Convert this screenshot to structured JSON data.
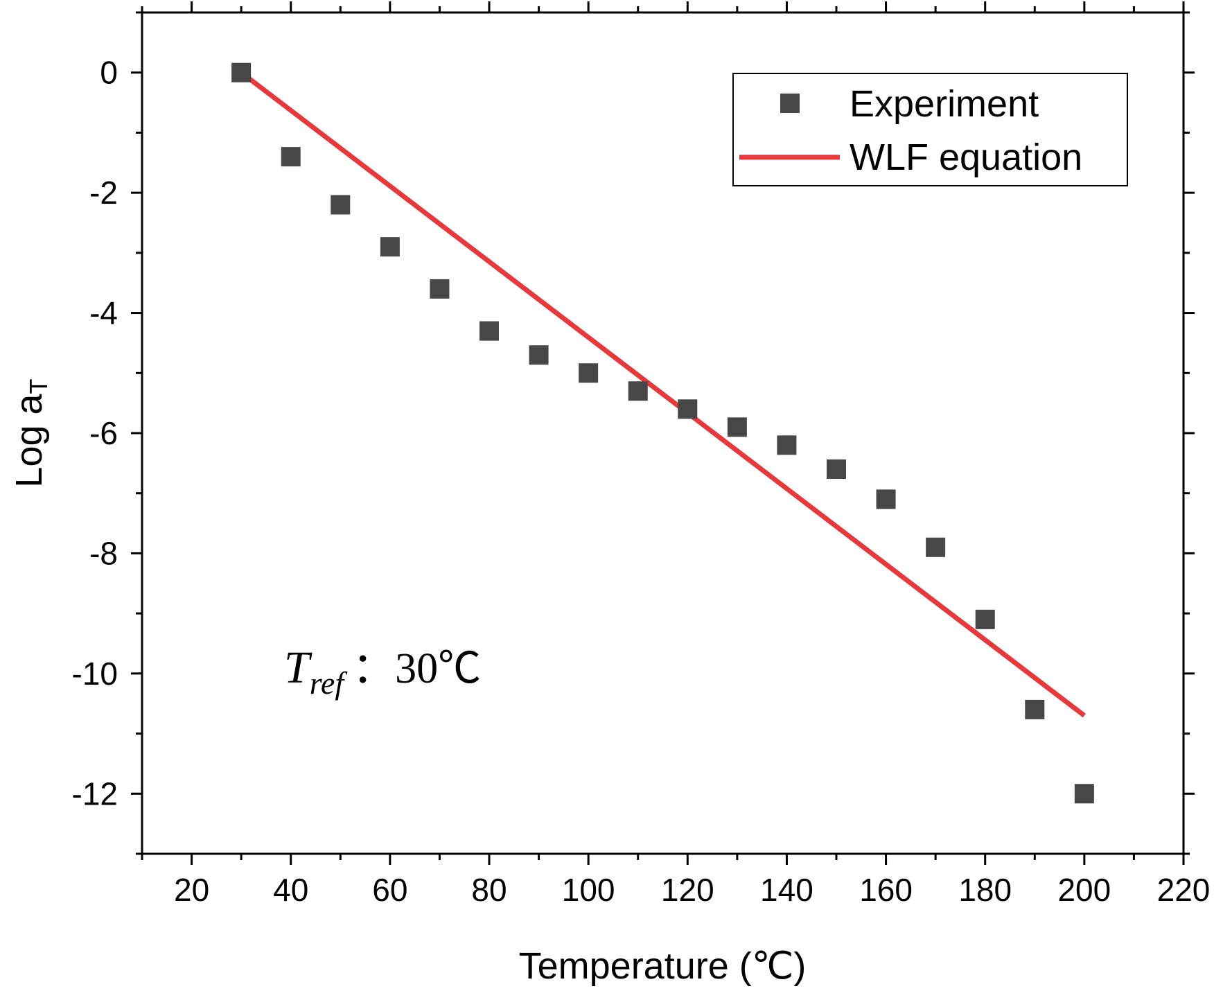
{
  "chart_data": {
    "type": "scatter",
    "title": "",
    "xlabel": "Temperature (℃)",
    "ylabel_main": "Log a",
    "ylabel_sub": "T",
    "xlim": [
      10,
      220
    ],
    "ylim": [
      -13,
      1
    ],
    "xticks": [
      20,
      40,
      60,
      80,
      100,
      120,
      140,
      160,
      180,
      200,
      220
    ],
    "yticks": [
      0,
      -2,
      -4,
      -6,
      -8,
      -10,
      -12
    ],
    "grid": false,
    "legend_position": "top-right",
    "series": [
      {
        "name": "Experiment",
        "kind": "scatter",
        "marker": "square",
        "color": "#474747",
        "x": [
          30,
          40,
          50,
          60,
          70,
          80,
          90,
          100,
          110,
          120,
          130,
          140,
          150,
          160,
          170,
          180,
          190,
          200
        ],
        "y": [
          0,
          -1.4,
          -2.2,
          -2.9,
          -3.6,
          -4.3,
          -4.7,
          -5.0,
          -5.3,
          -5.6,
          -5.9,
          -6.2,
          -6.6,
          -7.1,
          -7.9,
          -9.1,
          -10.6,
          -12.0
        ]
      },
      {
        "name": "WLF equation",
        "kind": "line",
        "color": "#e8383b",
        "x": [
          30,
          200
        ],
        "y": [
          0,
          -10.7
        ]
      }
    ],
    "annotation": {
      "main": "T",
      "sub": "ref",
      "text": "：30℃"
    }
  }
}
